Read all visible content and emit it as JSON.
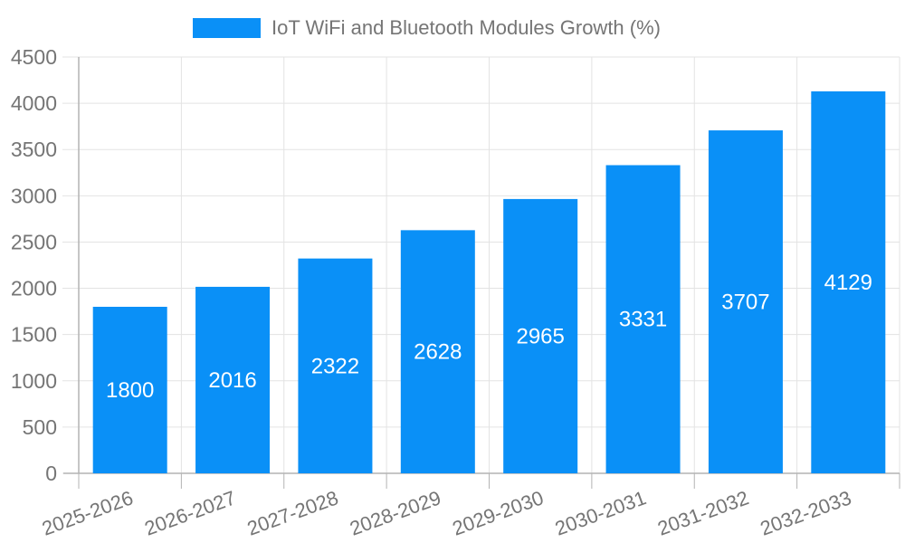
{
  "chart_data": {
    "type": "bar",
    "title": "IoT WiFi and Bluetooth Modules Growth (%)",
    "legend": [
      "IoT WiFi and Bluetooth Modules Growth (%)"
    ],
    "legend_position": "top",
    "categories": [
      "2025-2026",
      "2026-2027",
      "2027-2028",
      "2028-2029",
      "2029-2030",
      "2030-2031",
      "2031-2032",
      "2032-2033"
    ],
    "values": [
      1800,
      2016,
      2322,
      2628,
      2965,
      3331,
      3707,
      4129
    ],
    "bar_labels": [
      "1800",
      "2016",
      "2322",
      "2628",
      "2965",
      "3331",
      "3707",
      "4129"
    ],
    "xlabel": "",
    "ylabel": "",
    "ylim": [
      0,
      4500
    ],
    "yticks": [
      0,
      500,
      1000,
      1500,
      2000,
      2500,
      3000,
      3500,
      4000,
      4500
    ],
    "grid": true,
    "x_label_rotation_deg": -20,
    "colors": {
      "bar": "#0a90f7",
      "bar_label_text": "#ffffff",
      "axis_label_text": "#757575",
      "legend_text": "#757575",
      "gridline": "#e3e3e3",
      "axis_line": "#b3b3b3",
      "background": "#ffffff"
    }
  }
}
